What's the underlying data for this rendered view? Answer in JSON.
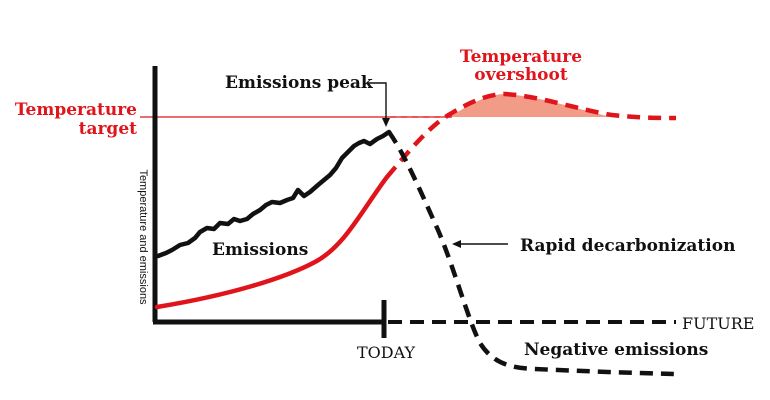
{
  "labels": {
    "temperature_target_line1": "Temperature",
    "temperature_target_line2": "target",
    "overshoot_line1": "Temperature",
    "overshoot_line2": "overshoot",
    "emissions_peak": "Emissions peak",
    "emissions": "Emissions",
    "rapid_decarbonization": "Rapid decarbonization",
    "future": "FUTURE",
    "today": "TODAY",
    "negative_emissions": "Negative emissions",
    "y_axis": "Temperature and emissions"
  },
  "colors": {
    "ink": "#111111",
    "accent": "#e0141b",
    "overshoot_fill": "#f08a72"
  }
}
